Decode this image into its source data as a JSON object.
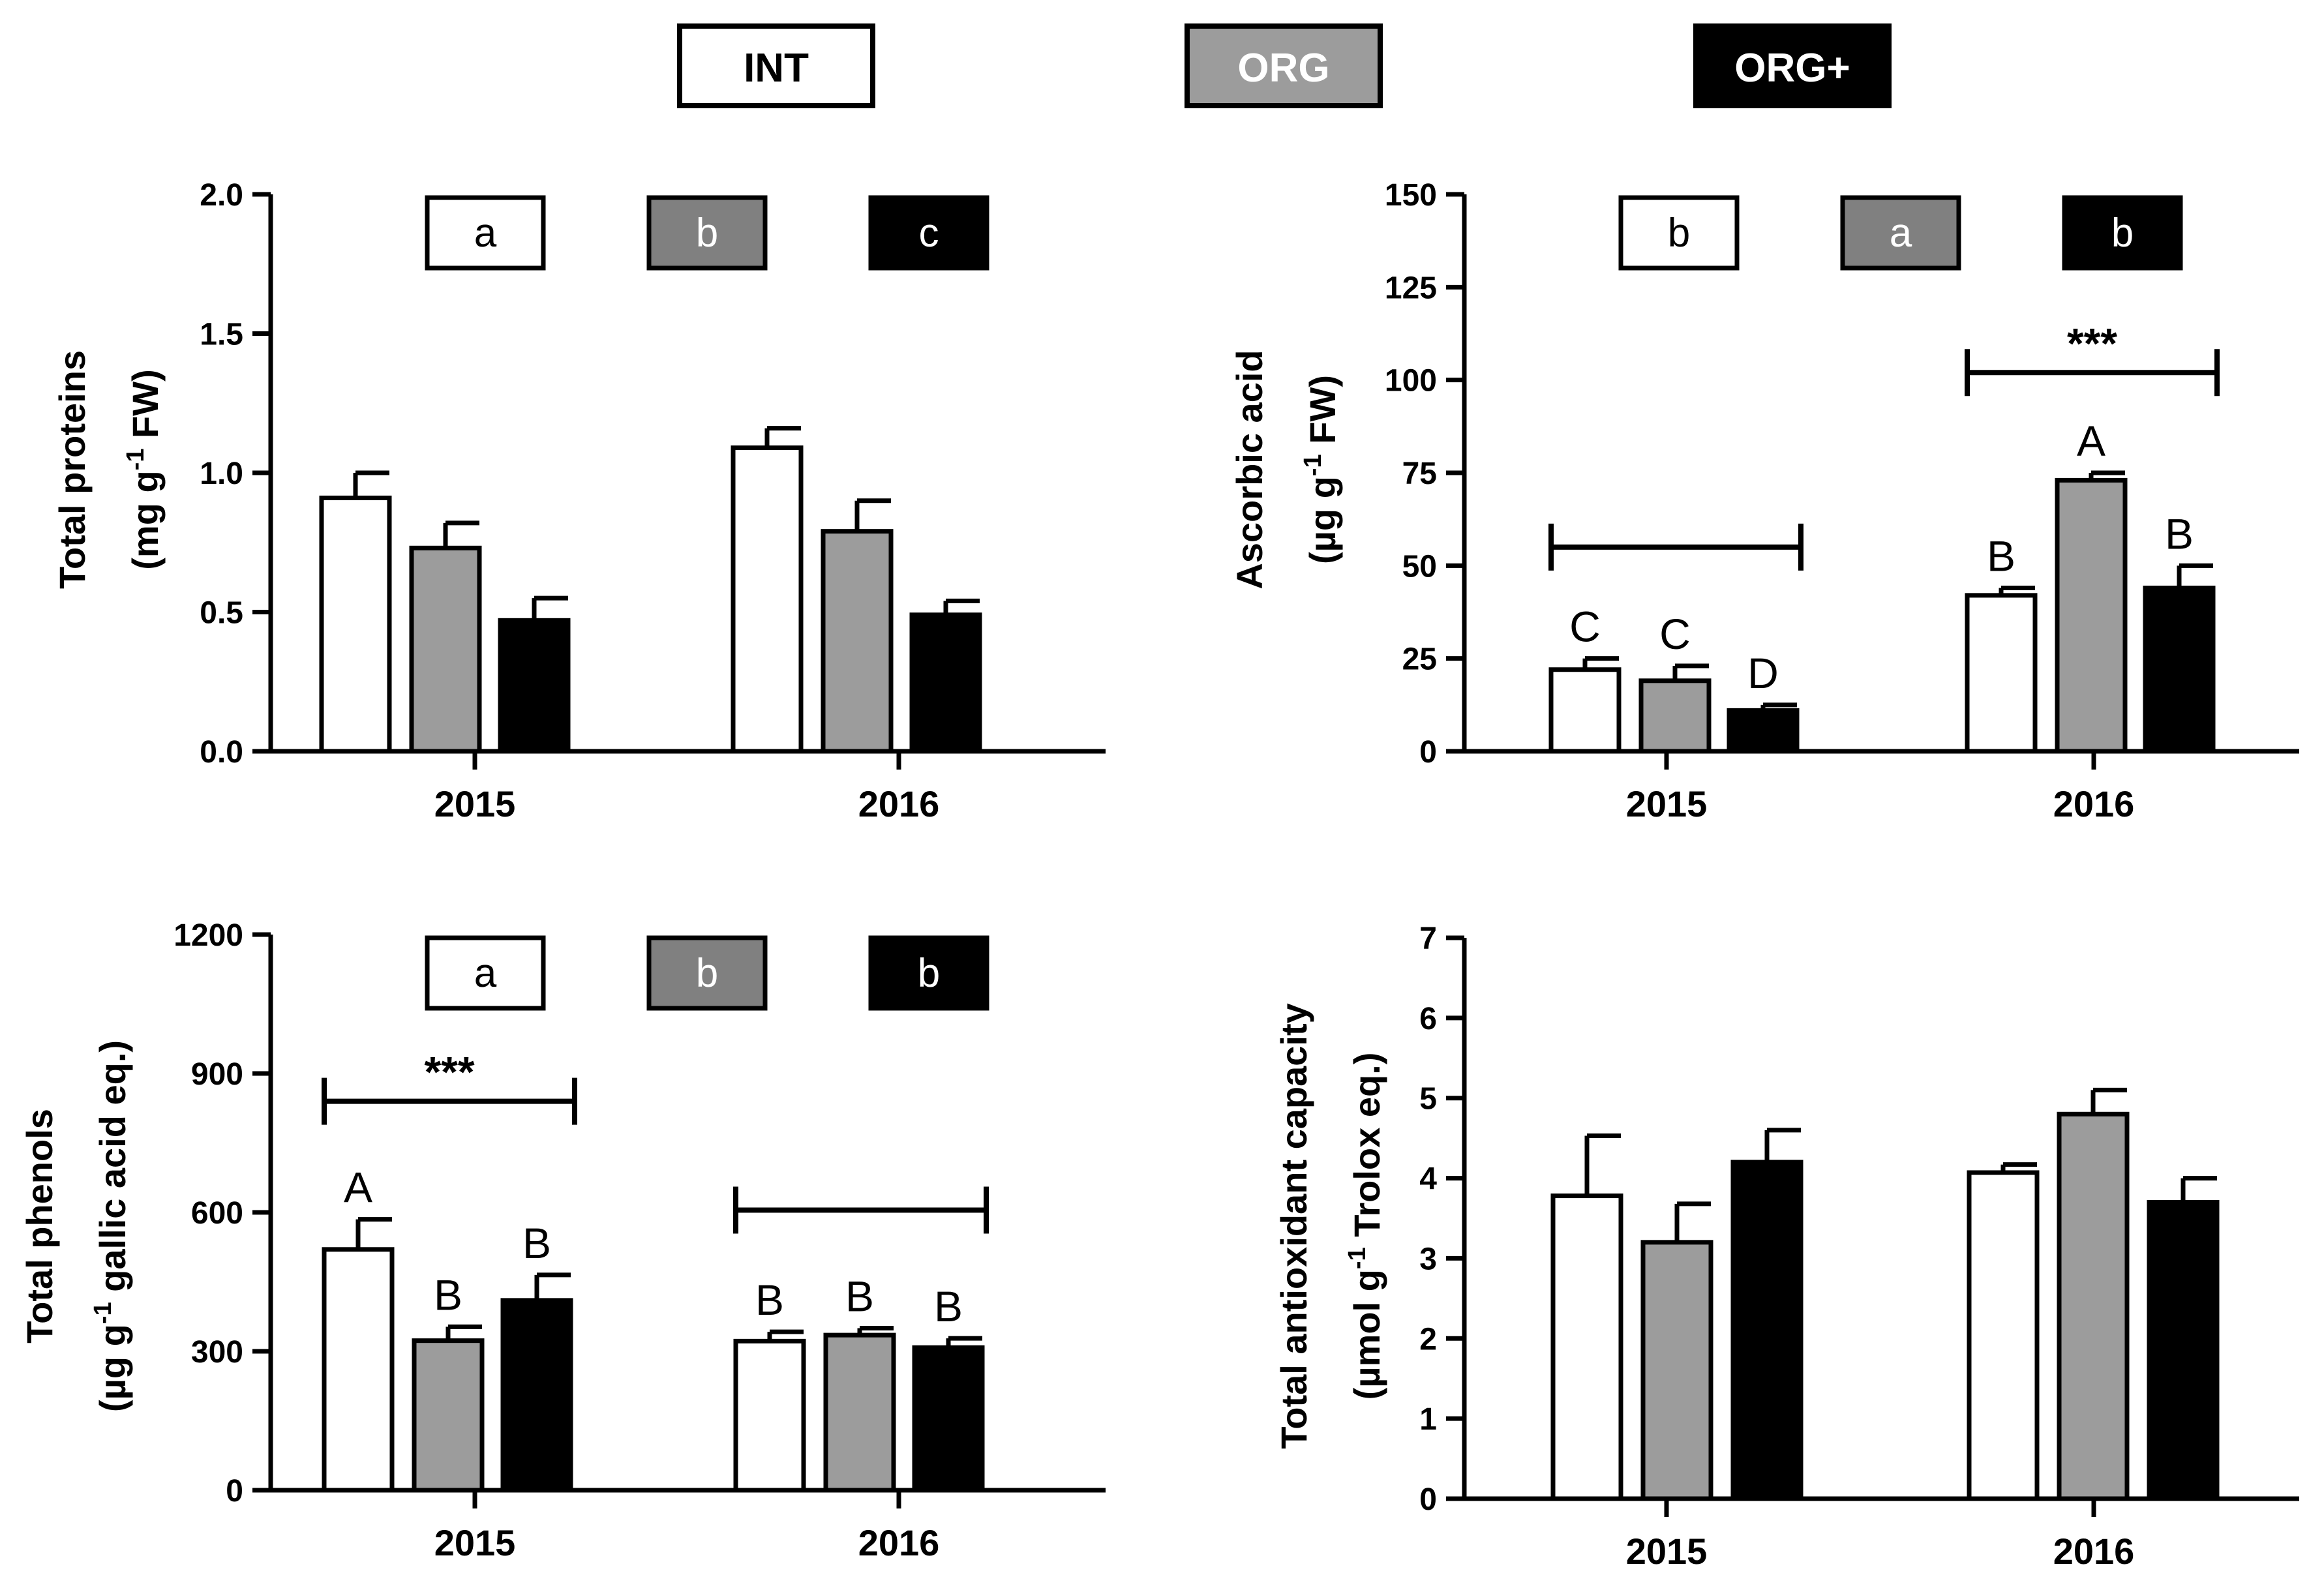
{
  "colors": {
    "INT": "#ffffff",
    "ORG": "#9c9c9c",
    "ORG+": "#000000",
    "box_gray": "#808080",
    "axis": "#000000"
  },
  "legend": [
    {
      "label": "INT",
      "color": "#ffffff",
      "text_color": "#000000"
    },
    {
      "label": "ORG",
      "color": "#9c9c9c",
      "text_color": "#ffffff"
    },
    {
      "label": "ORG+",
      "color": "#000000",
      "text_color": "#ffffff"
    }
  ],
  "chart_data": [
    {
      "type": "bar",
      "title": "Total proteins",
      "ylabel_line1": "Total proteins",
      "ylabel_line2_parts": [
        "(mg g",
        "-1",
        " FW)"
      ],
      "ylim": [
        0,
        2.0
      ],
      "yticks": [
        "0.0",
        "0.5",
        "1.0",
        "1.5",
        "2.0"
      ],
      "ytick_values": [
        0,
        0.5,
        1.0,
        1.5,
        2.0
      ],
      "categories": [
        "2015",
        "2016"
      ],
      "series": [
        {
          "name": "INT",
          "values": [
            0.91,
            1.09
          ],
          "errors": [
            0.09,
            0.07
          ]
        },
        {
          "name": "ORG",
          "values": [
            0.73,
            0.79
          ],
          "errors": [
            0.09,
            0.11
          ]
        },
        {
          "name": "ORG+",
          "values": [
            0.47,
            0.49
          ],
          "errors": [
            0.08,
            0.05
          ]
        }
      ],
      "group_letters": [
        "a",
        "b",
        "c"
      ],
      "bar_letters": null,
      "brackets": []
    },
    {
      "type": "bar",
      "title": "Ascorbic acid",
      "ylabel_line1": "Ascorbic acid",
      "ylabel_line2_parts": [
        "(µg g",
        "-1",
        " FW)"
      ],
      "ylim": [
        0,
        150
      ],
      "yticks": [
        "0",
        "25",
        "50",
        "75",
        "100",
        "125",
        "150"
      ],
      "ytick_values": [
        0,
        25,
        50,
        75,
        100,
        125,
        150
      ],
      "categories": [
        "2015",
        "2016"
      ],
      "series": [
        {
          "name": "INT",
          "values": [
            22,
            42
          ],
          "errors": [
            3,
            2
          ]
        },
        {
          "name": "ORG",
          "values": [
            19,
            73
          ],
          "errors": [
            4,
            2
          ]
        },
        {
          "name": "ORG+",
          "values": [
            11,
            44
          ],
          "errors": [
            1.5,
            6
          ]
        }
      ],
      "group_letters": [
        "b",
        "a",
        "b"
      ],
      "bar_letters": [
        [
          "C",
          "B"
        ],
        [
          "C",
          "A"
        ],
        [
          "D",
          "B"
        ]
      ],
      "brackets": [
        {
          "category": "2015",
          "level": 55,
          "text": ""
        },
        {
          "category": "2016",
          "level": 102,
          "text": "***"
        }
      ]
    },
    {
      "type": "bar",
      "title": "Total phenols",
      "ylabel_line1": "Total phenols",
      "ylabel_line2_parts": [
        "(µg g",
        "-1",
        " gallic acid eq.)"
      ],
      "ylim": [
        0,
        1200
      ],
      "yticks": [
        "0",
        "300",
        "600",
        "900",
        "1200"
      ],
      "ytick_values": [
        0,
        300,
        600,
        900,
        1200
      ],
      "categories": [
        "2015",
        "2016"
      ],
      "series": [
        {
          "name": "INT",
          "values": [
            520,
            322
          ],
          "errors": [
            65,
            20
          ]
        },
        {
          "name": "ORG",
          "values": [
            323,
            335
          ],
          "errors": [
            30,
            15
          ]
        },
        {
          "name": "ORG+",
          "values": [
            410,
            308
          ],
          "errors": [
            55,
            20
          ]
        }
      ],
      "group_letters": [
        "a",
        "b",
        "b"
      ],
      "bar_letters": [
        [
          "A",
          "B"
        ],
        [
          "B",
          "B"
        ],
        [
          "B",
          "B"
        ]
      ],
      "brackets": [
        {
          "category": "2015",
          "level": 840,
          "text": "***"
        },
        {
          "category": "2016",
          "level": 605,
          "text": ""
        }
      ]
    },
    {
      "type": "bar",
      "title": "Total antioxidant capacity",
      "ylabel_line1": "Total antioxidant capacity",
      "ylabel_line2_parts": [
        "(µmol g",
        "-1",
        " Trolox eq.)"
      ],
      "ylim": [
        0,
        7
      ],
      "yticks": [
        "0",
        "1",
        "2",
        "3",
        "4",
        "5",
        "6",
        "7"
      ],
      "ytick_values": [
        0,
        1,
        2,
        3,
        4,
        5,
        6,
        7
      ],
      "categories": [
        "2015",
        "2016"
      ],
      "series": [
        {
          "name": "INT",
          "values": [
            3.78,
            4.07
          ],
          "errors": [
            0.75,
            0.1
          ]
        },
        {
          "name": "ORG",
          "values": [
            3.2,
            4.8
          ],
          "errors": [
            0.48,
            0.3
          ]
        },
        {
          "name": "ORG+",
          "values": [
            4.2,
            3.7
          ],
          "errors": [
            0.4,
            0.3
          ]
        }
      ],
      "group_letters": null,
      "bar_letters": null,
      "brackets": []
    }
  ]
}
